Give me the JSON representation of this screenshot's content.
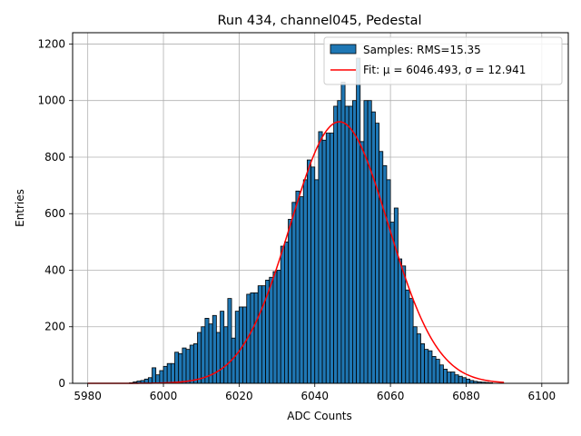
{
  "chart_data": {
    "type": "bar",
    "title": "Run 434, channel045, Pedestal",
    "xlabel": "ADC Counts",
    "ylabel": "Entries",
    "xlim": [
      5976,
      6107
    ],
    "ylim": [
      0,
      1240
    ],
    "xticks": [
      5980,
      6000,
      6020,
      6040,
      6060,
      6080,
      6100
    ],
    "yticks": [
      0,
      200,
      400,
      600,
      800,
      1000,
      1200
    ],
    "grid": true,
    "bar_color": "#1f77b4",
    "fit_color": "#ff0000",
    "bins": {
      "x_start": 5991,
      "width": 1,
      "counts": [
        2,
        5,
        8,
        10,
        15,
        20,
        55,
        30,
        45,
        60,
        70,
        70,
        110,
        105,
        125,
        120,
        135,
        140,
        180,
        200,
        230,
        210,
        240,
        180,
        255,
        200,
        300,
        160,
        255,
        270,
        270,
        315,
        320,
        320,
        345,
        345,
        365,
        375,
        395,
        400,
        485,
        500,
        580,
        640,
        680,
        660,
        720,
        790,
        765,
        720,
        890,
        860,
        885,
        885,
        980,
        1000,
        1065,
        980,
        980,
        1000,
        1150,
        855,
        1000,
        1000,
        960,
        920,
        820,
        770,
        720,
        570,
        620,
        440,
        415,
        330,
        300,
        200,
        175,
        140,
        120,
        115,
        95,
        85,
        65,
        50,
        40,
        40,
        30,
        25,
        20,
        15,
        10,
        7,
        5,
        4,
        3,
        2
      ]
    },
    "fit": {
      "mu": 6046.493,
      "sigma": 12.941,
      "amplitude": 925,
      "x_range": [
        5980,
        6090
      ]
    },
    "legend": {
      "position": "top-right",
      "entries": [
        {
          "label": "Samples: RMS=15.35",
          "kind": "bar"
        },
        {
          "label": "Fit: μ = 6046.493, σ = 12.941",
          "kind": "line"
        }
      ]
    }
  }
}
